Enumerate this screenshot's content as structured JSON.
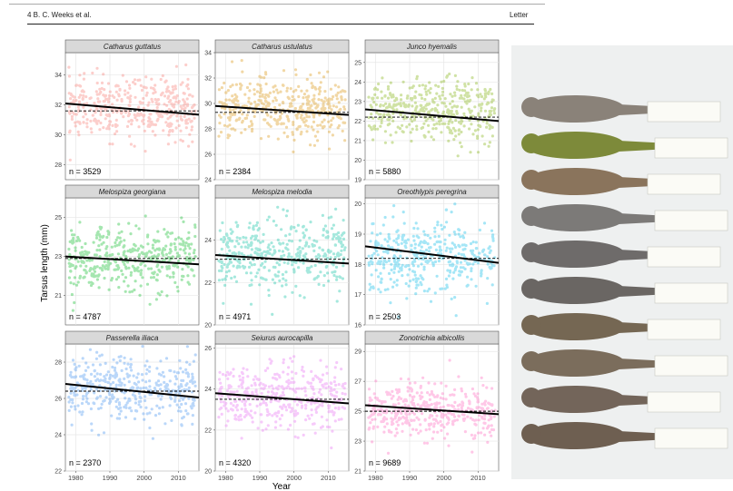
{
  "page": {
    "header_left": "4 B. C. Weeks et al.",
    "header_right": "Letter"
  },
  "chart_data": {
    "type": "scatter",
    "xlabel": "Year",
    "ylabel": "Tarsus length (mm)",
    "xlim": [
      1977,
      2016
    ],
    "xticks": [
      1980,
      1990,
      2000,
      2010
    ],
    "grid": true,
    "panels": [
      {
        "name": "Catharus guttatus",
        "n_label": "n = 3529",
        "color": "#f8766d",
        "ylim": [
          27,
          35.5
        ],
        "yticks": [
          28,
          30,
          32,
          34
        ],
        "mean": 31.8,
        "sd": 1.0,
        "trend": [
          32.1,
          31.35
        ],
        "dashed": 31.6
      },
      {
        "name": "Catharus ustulatus",
        "n_label": "n = 2384",
        "color": "#d89000",
        "ylim": [
          24,
          34
        ],
        "yticks": [
          24,
          26,
          28,
          30,
          32,
          34
        ],
        "mean": 29.6,
        "sd": 1.2,
        "trend": [
          29.8,
          29.1
        ],
        "dashed": 29.3
      },
      {
        "name": "Junco hyemalis",
        "n_label": "n = 5880",
        "color": "#7cae00",
        "ylim": [
          19,
          25.5
        ],
        "yticks": [
          19,
          20,
          21,
          22,
          23,
          24,
          25
        ],
        "mean": 22.5,
        "sd": 0.8,
        "trend": [
          22.6,
          22.0
        ],
        "dashed": 22.2
      },
      {
        "name": "Melospiza georgiana",
        "n_label": "n = 4787",
        "color": "#00b81f",
        "ylim": [
          19.5,
          26
        ],
        "yticks": [
          21,
          23,
          25
        ],
        "mean": 22.9,
        "sd": 0.8,
        "trend": [
          23.0,
          22.6
        ],
        "dashed": 22.9
      },
      {
        "name": "Melospiza melodia",
        "n_label": "n = 4971",
        "color": "#00bfa0",
        "ylim": [
          20,
          26
        ],
        "yticks": [
          20,
          22,
          24
        ],
        "mean": 23.2,
        "sd": 0.9,
        "trend": [
          23.3,
          22.9
        ],
        "dashed": 23.1
      },
      {
        "name": "Oreothlypis peregrina",
        "n_label": "n = 2503",
        "color": "#00b8e7",
        "ylim": [
          16,
          20.2
        ],
        "yticks": [
          16,
          17,
          18,
          19,
          20
        ],
        "mean": 18.3,
        "sd": 0.6,
        "trend": [
          18.6,
          18.05
        ],
        "dashed": 18.2
      },
      {
        "name": "Passerella iliaca",
        "n_label": "n = 2370",
        "color": "#3d8ff0",
        "ylim": [
          22,
          29
        ],
        "yticks": [
          22,
          24,
          26,
          28
        ],
        "mean": 26.5,
        "sd": 0.9,
        "trend": [
          26.8,
          26.05
        ],
        "dashed": 26.4
      },
      {
        "name": "Seiurus aurocapilla",
        "n_label": "n = 4320",
        "color": "#e76bf3",
        "ylim": [
          20,
          26.2
        ],
        "yticks": [
          20,
          22,
          24,
          26
        ],
        "mean": 23.6,
        "sd": 0.8,
        "trend": [
          23.8,
          23.3
        ],
        "dashed": 23.5
      },
      {
        "name": "Zonotrichia albicollis",
        "n_label": "n = 9689",
        "color": "#ff62bc",
        "ylim": [
          21,
          29.5
        ],
        "yticks": [
          21,
          23,
          25,
          27,
          29
        ],
        "mean": 25.0,
        "sd": 0.9,
        "trend": [
          25.4,
          24.8
        ],
        "dashed": 25.0
      }
    ]
  },
  "photo": {
    "colors": [
      "#8a8279",
      "#7d8a3a",
      "#8a745c",
      "#7c7a78",
      "#6e6b6a",
      "#6a6663",
      "#756753",
      "#7b6d5c",
      "#73655a",
      "#6e5f51"
    ]
  }
}
